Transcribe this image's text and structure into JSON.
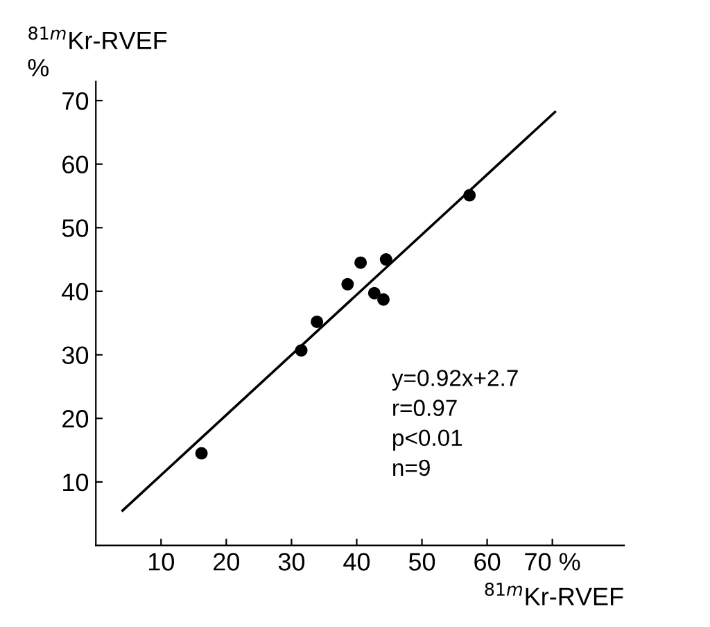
{
  "chart_data": {
    "type": "scatter",
    "xlabel": "$^{81m}$Kr-RVEF",
    "ylabel": "$^{81m}$Kr-RVEF\n%",
    "xlim": [
      0,
      81
    ],
    "ylim": [
      0,
      73
    ],
    "xticks": [
      10,
      20,
      30,
      40,
      50,
      60,
      {
        "value": 70,
        "label": "70 %"
      }
    ],
    "yticks": [
      10,
      20,
      30,
      40,
      50,
      60,
      70
    ],
    "grid": false,
    "legend": false,
    "series": [
      {
        "marker": "circle",
        "color": "#000000",
        "x": [
          16.2,
          31.5,
          33.9,
          38.6,
          40.6,
          42.7,
          44.1,
          44.5,
          57.3
        ],
        "values": [
          14.5,
          30.7,
          35.2,
          41.1,
          44.5,
          39.7,
          38.7,
          45.0,
          55.1
        ]
      },
      {
        "type": "line",
        "marker": "none",
        "color": "#000000",
        "line_style": "solid",
        "x": [
          4.1,
          70.4
        ],
        "values": [
          5.5,
          68.2
        ]
      }
    ],
    "annotations": [
      "y=0.92x+2.7\nr=0.97\np<0.01\nn=9"
    ]
  }
}
